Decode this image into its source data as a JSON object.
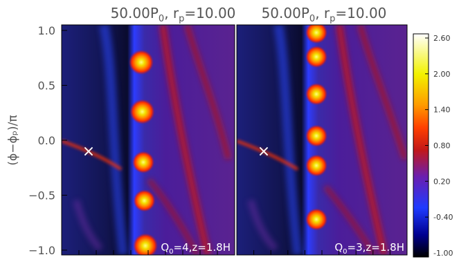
{
  "chart_data": [
    {
      "type": "heatmap",
      "title": "50.00P₀,  r_p=10.00",
      "title_main": "50.00P",
      "title_sub0": "0",
      "title_mid": ",  r",
      "title_subp": "p",
      "title_end": "=10.00",
      "ylabel": "(ϕ−ϕₚ)/π",
      "ylim": [
        -1.0,
        1.0
      ],
      "yticks": [
        1.0,
        0.5,
        0.0,
        -0.5,
        -1.0
      ],
      "ytick_labels": [
        "1.0",
        "0.5",
        "0.0",
        "−0.5",
        "−1.0"
      ],
      "annotation": "Q₀=4,z=1.8H",
      "ann_a": "Q",
      "ann_sub": "0",
      "ann_b": "=4,z=1.8H",
      "marker": {
        "symbol": "×",
        "y": 0.0
      },
      "clumps_y": [
        0.71,
        0.26,
        -0.2,
        -0.55,
        -0.96
      ]
    },
    {
      "type": "heatmap",
      "title": "50.00P₀,  r_p=10.00",
      "title_main": "50.00P",
      "title_sub0": "0",
      "title_mid": ",  r",
      "title_subp": "p",
      "title_end": "=10.00",
      "ylim": [
        -1.0,
        1.0
      ],
      "annotation": "Q₀=3,z=1.8H",
      "ann_a": "Q",
      "ann_sub": "0",
      "ann_b": "=3,z=1.8H",
      "marker": {
        "symbol": "×",
        "y": 0.0
      },
      "clumps_y": [
        0.98,
        0.76,
        0.42,
        0.04,
        -0.23,
        -0.72
      ]
    }
  ],
  "colorbar": {
    "ticks": [
      2.6,
      2.0,
      1.4,
      0.8,
      0.2,
      -0.4,
      -1.0
    ],
    "tick_labels": [
      "2.60",
      "2.00",
      "1.40",
      "0.80",
      "0.20",
      "-0.40",
      "-1.00"
    ],
    "range": [
      -1.0,
      2.7
    ],
    "colors": [
      "#000000",
      "#000090",
      "#1f3bff",
      "#6a1fb0",
      "#c21818",
      "#ff4000",
      "#ff9a00",
      "#f2f200",
      "#ffffff"
    ]
  }
}
